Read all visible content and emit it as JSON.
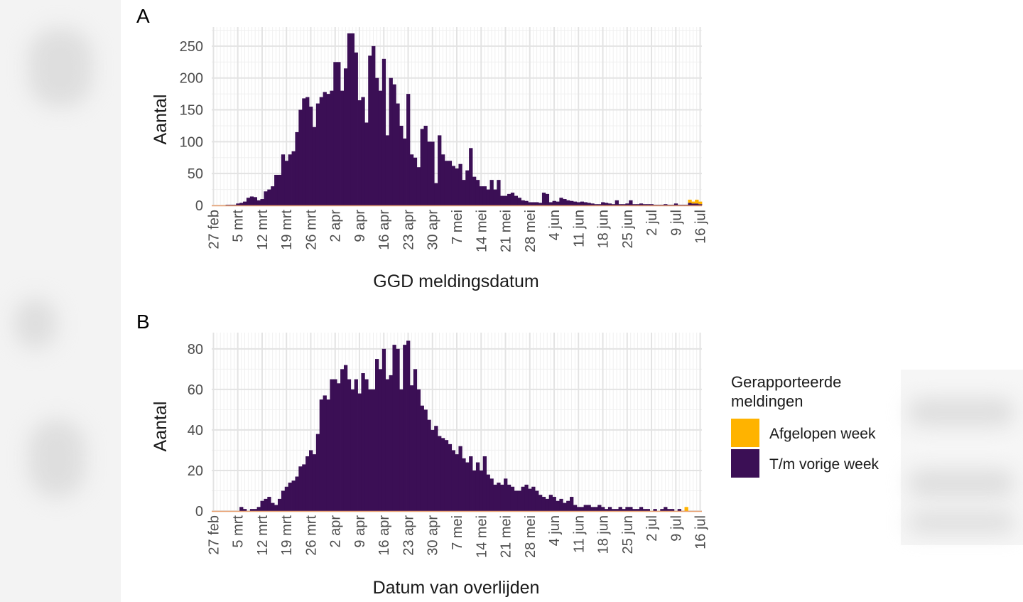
{
  "colors": {
    "current_week": "#FFB300",
    "previous_weeks": "#3B0F55",
    "grid_major": "#E3E3E3",
    "grid_minor": "#F0F0F0",
    "baseline": "#E8A070"
  },
  "legend": {
    "title_line1": "Gerapporteerde",
    "title_line2": "meldingen",
    "items": [
      {
        "label": "Afgelopen week",
        "color": "#FFB300"
      },
      {
        "label": "T/m vorige week",
        "color": "#3B0F55"
      }
    ]
  },
  "chart_data": [
    {
      "type": "bar",
      "panel": "A",
      "xlabel": "GGD meldingsdatum",
      "ylabel": "Aantal",
      "ylim": [
        0,
        280
      ],
      "yticks": [
        0,
        50,
        100,
        150,
        200,
        250
      ],
      "x_tick_labels": [
        "27 feb",
        "5 mrt",
        "12 mrt",
        "19 mrt",
        "26 mrt",
        "2 apr",
        "9 apr",
        "16 apr",
        "23 apr",
        "30 apr",
        "7 mei",
        "14 mei",
        "21 mei",
        "28 mei",
        "4 jun",
        "11 jun",
        "18 jun",
        "25 jun",
        "2 jul",
        "9 jul",
        "16 jul"
      ],
      "start_day": "27 feb",
      "series": [
        {
          "name": "T/m vorige week",
          "values": [
            0,
            0,
            0,
            0,
            1,
            1,
            1,
            3,
            4,
            6,
            12,
            14,
            13,
            8,
            10,
            22,
            25,
            30,
            48,
            48,
            80,
            70,
            80,
            85,
            115,
            150,
            168,
            170,
            155,
            123,
            160,
            170,
            178,
            175,
            180,
            225,
            225,
            180,
            215,
            270,
            270,
            240,
            165,
            170,
            130,
            235,
            250,
            200,
            180,
            230,
            110,
            200,
            190,
            160,
            125,
            105,
            175,
            80,
            75,
            60,
            120,
            125,
            100,
            100,
            35,
            110,
            80,
            70,
            70,
            62,
            58,
            65,
            40,
            55,
            90,
            45,
            40,
            30,
            30,
            25,
            40,
            25,
            40,
            15,
            15,
            18,
            20,
            15,
            12,
            8,
            7,
            5,
            5,
            5,
            4,
            20,
            18,
            5,
            7,
            6,
            12,
            10,
            8,
            7,
            6,
            5,
            6,
            5,
            4,
            3,
            2,
            2,
            5,
            4,
            3,
            2,
            8,
            2,
            2,
            3,
            8,
            2,
            2,
            3,
            2,
            2,
            2,
            1,
            1,
            1,
            2,
            1,
            1,
            3,
            1,
            1,
            1,
            4,
            3,
            3,
            2
          ]
        },
        {
          "name": "Afgelopen week",
          "values": [
            0,
            0,
            0,
            0,
            0,
            0,
            0,
            0,
            0,
            0,
            0,
            0,
            0,
            0,
            0,
            0,
            0,
            0,
            0,
            0,
            0,
            0,
            0,
            0,
            0,
            0,
            0,
            0,
            0,
            0,
            0,
            0,
            0,
            0,
            0,
            0,
            0,
            0,
            0,
            0,
            0,
            0,
            0,
            0,
            0,
            0,
            0,
            0,
            0,
            0,
            0,
            0,
            0,
            0,
            0,
            0,
            0,
            0,
            0,
            0,
            0,
            0,
            0,
            0,
            0,
            0,
            0,
            0,
            0,
            0,
            0,
            0,
            0,
            0,
            0,
            0,
            0,
            0,
            0,
            0,
            0,
            0,
            0,
            0,
            0,
            0,
            0,
            0,
            0,
            0,
            0,
            0,
            0,
            0,
            0,
            0,
            0,
            0,
            0,
            0,
            0,
            0,
            0,
            0,
            0,
            0,
            0,
            0,
            0,
            0,
            0,
            0,
            0,
            0,
            0,
            0,
            0,
            0,
            0,
            0,
            0,
            0,
            0,
            0,
            0,
            0,
            0,
            0,
            0,
            0,
            0,
            0,
            0,
            0,
            0,
            0,
            0,
            5,
            3,
            6,
            4
          ]
        }
      ]
    },
    {
      "type": "bar",
      "panel": "B",
      "xlabel": "Datum van overlijden",
      "ylabel": "Aantal",
      "ylim": [
        0,
        88
      ],
      "yticks": [
        0,
        20,
        40,
        60,
        80
      ],
      "x_tick_labels": [
        "27 feb",
        "5 mrt",
        "12 mrt",
        "19 mrt",
        "26 mrt",
        "2 apr",
        "9 apr",
        "16 apr",
        "23 apr",
        "30 apr",
        "7 mei",
        "14 mei",
        "21 mei",
        "28 mei",
        "4 jun",
        "11 jun",
        "18 jun",
        "25 jun",
        "2 jul",
        "9 jul",
        "16 jul"
      ],
      "start_day": "27 feb",
      "series": [
        {
          "name": "T/m vorige week",
          "values": [
            0,
            0,
            0,
            0,
            0,
            0,
            0,
            0,
            2,
            1,
            0,
            1,
            1,
            2,
            5,
            6,
            7,
            4,
            3,
            6,
            10,
            12,
            14,
            15,
            17,
            22,
            23,
            27,
            30,
            28,
            38,
            55,
            57,
            55,
            65,
            65,
            63,
            70,
            72,
            65,
            60,
            65,
            58,
            68,
            65,
            60,
            60,
            75,
            70,
            80,
            65,
            67,
            82,
            80,
            60,
            82,
            84,
            62,
            70,
            60,
            52,
            50,
            45,
            40,
            42,
            37,
            36,
            35,
            33,
            30,
            28,
            32,
            26,
            24,
            27,
            20,
            24,
            20,
            27,
            18,
            16,
            13,
            14,
            13,
            16,
            13,
            12,
            10,
            10,
            12,
            13,
            11,
            12,
            10,
            8,
            7,
            6,
            8,
            7,
            5,
            6,
            4,
            5,
            7,
            3,
            2,
            2,
            3,
            3,
            2,
            2,
            3,
            2,
            1,
            2,
            1,
            1,
            2,
            1,
            2,
            2,
            1,
            1,
            2,
            1,
            1,
            0,
            1,
            0,
            1,
            2,
            1,
            1,
            0,
            1,
            0,
            0,
            0,
            0,
            0,
            0
          ]
        },
        {
          "name": "Afgelopen week",
          "values": [
            0,
            0,
            0,
            0,
            0,
            0,
            0,
            0,
            0,
            0,
            0,
            0,
            0,
            0,
            0,
            0,
            0,
            0,
            0,
            0,
            0,
            0,
            0,
            0,
            0,
            0,
            0,
            0,
            0,
            0,
            0,
            0,
            0,
            0,
            0,
            0,
            0,
            0,
            0,
            0,
            0,
            0,
            0,
            0,
            0,
            0,
            0,
            0,
            0,
            0,
            0,
            0,
            0,
            0,
            0,
            0,
            0,
            0,
            0,
            0,
            0,
            0,
            0,
            0,
            0,
            0,
            0,
            0,
            0,
            0,
            0,
            0,
            0,
            0,
            0,
            0,
            0,
            0,
            0,
            0,
            0,
            0,
            0,
            0,
            0,
            0,
            0,
            0,
            0,
            0,
            0,
            0,
            0,
            0,
            0,
            0,
            0,
            0,
            0,
            0,
            0,
            0,
            0,
            0,
            0,
            0,
            0,
            0,
            0,
            0,
            0,
            0,
            0,
            0,
            0,
            0,
            0,
            0,
            0,
            0,
            0,
            0,
            0,
            0,
            0,
            0,
            0,
            0,
            0,
            0,
            0,
            0,
            0,
            0,
            0,
            0,
            2,
            0,
            0,
            0,
            0
          ]
        }
      ]
    }
  ]
}
